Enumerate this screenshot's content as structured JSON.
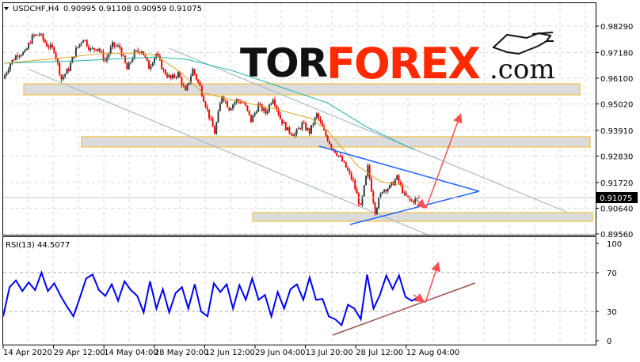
{
  "header": {
    "symbol": "USDCHF,H4",
    "ohlc": "0.90995 0.91108 0.90959 0.91075",
    "dropdown_icon": "triangle-down-icon"
  },
  "logo": {
    "part1": "TOR",
    "part2": "FOREX",
    "part3": ".com",
    "icon": "bull-icon"
  },
  "colors": {
    "bull_candle": "#2f3f3f",
    "bear_candle": "#ff0000",
    "ma_fast": "#daa520",
    "ma_slow": "#20b2aa",
    "rsi_line": "#0000ff",
    "support_trendline": "#1e64ff",
    "zone_border": "#f0c040",
    "arrow": "#ff5050",
    "rsi_trendline": "#a05050",
    "logo_red": "#ff2a00"
  },
  "chart_data": [
    {
      "type": "candlestick",
      "title": "USDCHF,H4",
      "price_ticks": [
        "0.98290",
        "0.97180",
        "0.96100",
        "0.95020",
        "0.93910",
        "0.92830",
        "0.91720",
        "0.90640",
        "0.89560"
      ],
      "ylim": [
        0.8956,
        0.9829
      ],
      "current_price": "0.91075",
      "time_ticks": [
        "14 Apr 2020",
        "29 Apr 12:00",
        "14 May 04:00",
        "28 May 20:00",
        "12 Jun 12:00",
        "29 Jun 04:00",
        "13 Jul 20:00",
        "28 Jul 12:00",
        "12 Aug 04:00"
      ],
      "grid": true,
      "close": [
        0.9607,
        0.9673,
        0.9713,
        0.9716,
        0.9783,
        0.9796,
        0.9749,
        0.9729,
        0.9607,
        0.965,
        0.9729,
        0.9779,
        0.9729,
        0.9739,
        0.9683,
        0.9749,
        0.9739,
        0.9646,
        0.9716,
        0.9729,
        0.9656,
        0.9713,
        0.964,
        0.9607,
        0.963,
        0.955,
        0.9646,
        0.9573,
        0.9474,
        0.9381,
        0.954,
        0.9484,
        0.9517,
        0.9507,
        0.9431,
        0.9497,
        0.9464,
        0.953,
        0.9441,
        0.9391,
        0.9374,
        0.9417,
        0.9384,
        0.9457,
        0.9384,
        0.9324,
        0.9285,
        0.9235,
        0.9175,
        0.9065,
        0.9235,
        0.9052,
        0.9142,
        0.9152,
        0.9192,
        0.9119,
        0.9092,
        0.91075
      ],
      "ma_fast": [
        [
          0,
          0.9673
        ],
        [
          5.9,
          0.9689
        ],
        [
          13.3,
          0.9713
        ],
        [
          18.7,
          0.9716
        ],
        [
          20.8,
          0.9706
        ],
        [
          24,
          0.964
        ],
        [
          27.2,
          0.955
        ],
        [
          31.5,
          0.9517
        ],
        [
          36.8,
          0.9484
        ],
        [
          42.1,
          0.9441
        ],
        [
          44.3,
          0.9391
        ],
        [
          48.5,
          0.9241
        ],
        [
          51.7,
          0.9175
        ],
        [
          53.9,
          0.9165
        ],
        [
          55.5,
          0.9152
        ]
      ],
      "ma_slow": [
        [
          0,
          0.9673
        ],
        [
          10.1,
          0.9683
        ],
        [
          20.8,
          0.9699
        ],
        [
          25.1,
          0.9689
        ],
        [
          31.5,
          0.964
        ],
        [
          37.9,
          0.9573
        ],
        [
          44.3,
          0.9507
        ],
        [
          49.6,
          0.9407
        ],
        [
          56.3,
          0.9308
        ]
      ],
      "zones": [
        [
          0.954,
          0.9587
        ],
        [
          0.9321,
          0.9364
        ],
        [
          0.9009,
          0.9042
        ]
      ]
    },
    {
      "type": "line",
      "title": "RSI(13) 44.5077",
      "ylim": [
        0,
        100
      ],
      "ticks": [
        "100",
        "70",
        "30",
        "0"
      ],
      "levels": [
        70,
        30
      ],
      "values": [
        25,
        55,
        62,
        51,
        60,
        52,
        70,
        51,
        59,
        46,
        35,
        25,
        44,
        64,
        68,
        52,
        46,
        58,
        41,
        61,
        52,
        46,
        29,
        61,
        33,
        53,
        29,
        49,
        55,
        33,
        58,
        30,
        25,
        59,
        50,
        58,
        33,
        57,
        42,
        64,
        42,
        47,
        25,
        50,
        33,
        53,
        58,
        42,
        65,
        42,
        43,
        25,
        22,
        16,
        37,
        33,
        22,
        68,
        33,
        47,
        67,
        53,
        67,
        45,
        41,
        44.5
      ]
    }
  ]
}
